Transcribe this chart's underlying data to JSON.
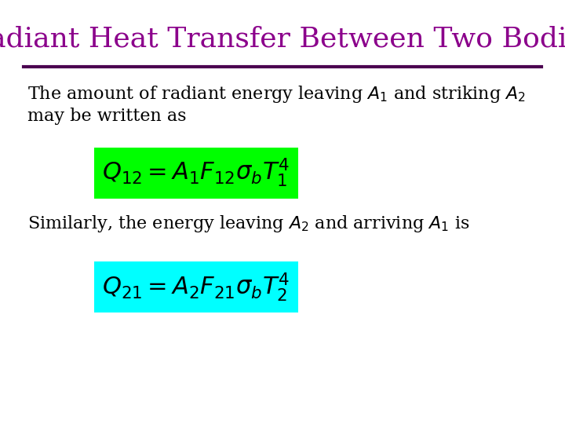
{
  "title": "Radiant Heat Transfer Between Two Bodies",
  "title_color": "#8B008B",
  "title_fontsize": 26,
  "background_color": "#FFFFFF",
  "line_color": "#4B0050",
  "formula1": "$Q_{12} = A_1 F_{12} \\sigma_b T_1^4$",
  "formula1_bg": "#00FF00",
  "formula2": "$Q_{21} = A_2 F_{21} \\sigma_b T_2^4$",
  "formula2_bg": "#00FFFF",
  "body_fontsize": 16,
  "formula_fontsize": 22
}
